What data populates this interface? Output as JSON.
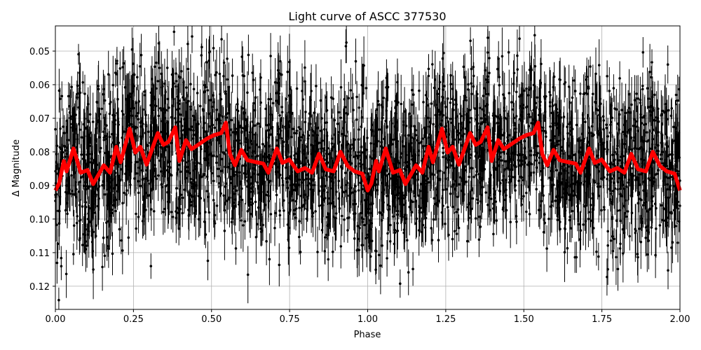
{
  "chart_data": {
    "type": "scatter",
    "title": "Light curve of ASCC 377530",
    "xlabel": "Phase",
    "ylabel": "Δ Magnitude",
    "xlim": [
      0.0,
      2.0
    ],
    "ylim": [
      0.1269,
      0.0425
    ],
    "y_inverted": true,
    "grid": true,
    "x_ticks": [
      "0.00",
      "0.25",
      "0.50",
      "0.75",
      "1.00",
      "1.25",
      "1.50",
      "1.75",
      "2.00"
    ],
    "x_tick_values": [
      0.0,
      0.25,
      0.5,
      0.75,
      1.0,
      1.25,
      1.5,
      1.75,
      2.0
    ],
    "y_ticks": [
      "0.05",
      "0.06",
      "0.07",
      "0.08",
      "0.09",
      "0.10",
      "0.11",
      "0.12"
    ],
    "y_tick_values": [
      0.05,
      0.06,
      0.07,
      0.08,
      0.09,
      0.1,
      0.11,
      0.12
    ],
    "series": [
      {
        "name": "observations",
        "style": "black points with error bars",
        "color": "#000000",
        "description": "dense phase-folded photometry, scatter roughly 0.043–0.127 mag around mean ~0.085"
      },
      {
        "name": "binned model",
        "style": "thick line",
        "color": "#ff0000",
        "phase_one_cycle": [
          0.0,
          0.012,
          0.027,
          0.036,
          0.058,
          0.081,
          0.103,
          0.121,
          0.155,
          0.175,
          0.195,
          0.209,
          0.238,
          0.256,
          0.272,
          0.292,
          0.328,
          0.346,
          0.362,
          0.384,
          0.397,
          0.418,
          0.436,
          0.463,
          0.485,
          0.508,
          0.531,
          0.546,
          0.559,
          0.575,
          0.595,
          0.615,
          0.644,
          0.666,
          0.682,
          0.709,
          0.727,
          0.749,
          0.776,
          0.799,
          0.822,
          0.844,
          0.866,
          0.891,
          0.913,
          0.936,
          0.958,
          0.983,
          1.0
        ],
        "values_one_cycle": [
          0.0915,
          0.0894,
          0.0827,
          0.0858,
          0.079,
          0.0862,
          0.0854,
          0.0896,
          0.084,
          0.0862,
          0.0785,
          0.0831,
          0.0731,
          0.0802,
          0.0785,
          0.0838,
          0.0744,
          0.0779,
          0.077,
          0.0727,
          0.0827,
          0.0765,
          0.0792,
          0.0775,
          0.0761,
          0.075,
          0.0744,
          0.0713,
          0.0806,
          0.084,
          0.0794,
          0.0825,
          0.0831,
          0.0835,
          0.0862,
          0.079,
          0.0833,
          0.0823,
          0.0858,
          0.0848,
          0.0862,
          0.0806,
          0.0852,
          0.0858,
          0.08,
          0.0842,
          0.0858,
          0.0865,
          0.0915
        ]
      }
    ]
  }
}
